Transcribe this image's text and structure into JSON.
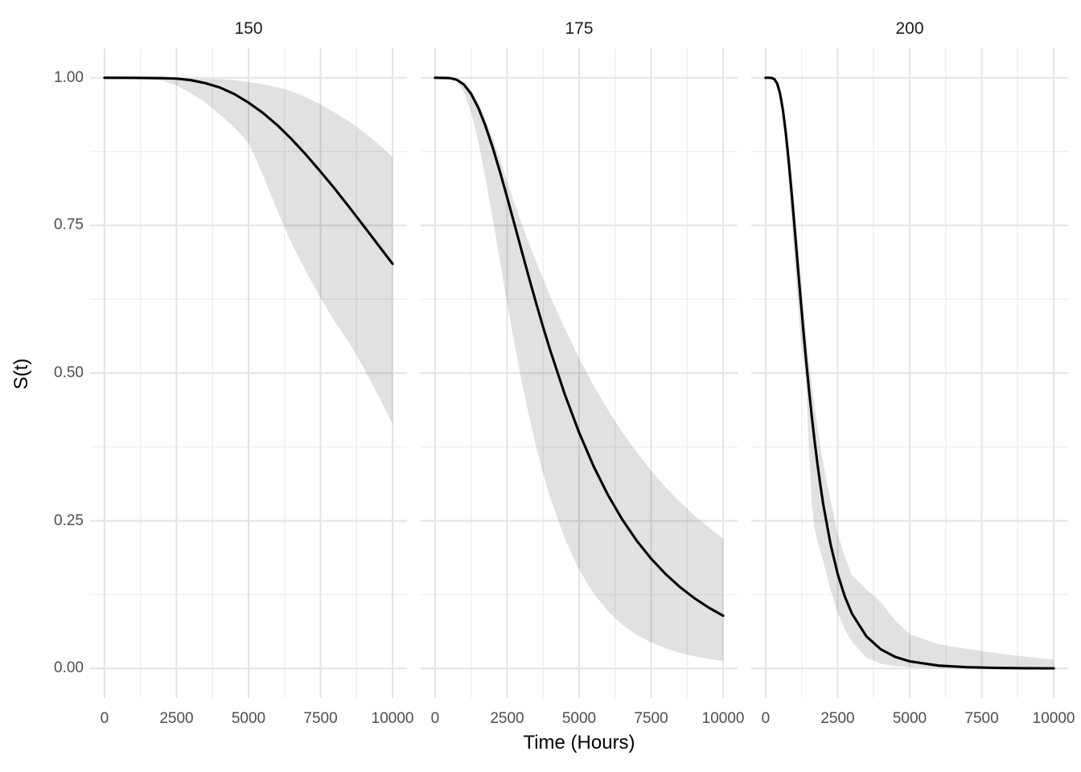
{
  "colors": {
    "background": "#ffffff",
    "curve": "#000000",
    "ribbon": "rgba(0,0,0,0.118)",
    "grid_major": "#e3e3e3",
    "grid_minor": "#efefef",
    "tick_text": "#4d4d4d",
    "facet_text": "#1a1a1a",
    "axis_title_text": "#000000"
  },
  "chart_data": {
    "type": "line",
    "title": "",
    "x_label": "Time (Hours)",
    "y_label": "S(t)",
    "facet_labels": [
      "150",
      "175",
      "200"
    ],
    "x_ticks": [
      0,
      2500,
      5000,
      7500,
      10000
    ],
    "x_tick_labels": [
      "0",
      "2500",
      "5000",
      "7500",
      "10000"
    ],
    "y_ticks": [
      1.0,
      0.75,
      0.5,
      0.25,
      0.0
    ],
    "y_tick_labels": [
      "1.00",
      "0.75",
      "0.50",
      "0.25",
      "0.00"
    ],
    "x_minor": [
      1250,
      3750,
      6250,
      8750
    ],
    "y_minor": [
      0.875,
      0.625,
      0.375,
      0.125
    ],
    "x_range": [
      0,
      10000
    ],
    "y_range": [
      0,
      1
    ],
    "grid": "on",
    "legend": "none",
    "description": "Faceted survival curves S(t) with 95% confidence ribbons at stress levels 150, 175, 200",
    "facets": [
      {
        "label": "150",
        "x": [
          0,
          1000,
          2000,
          2500,
          3000,
          3500,
          4000,
          4500,
          5000,
          5500,
          6000,
          6500,
          7000,
          7500,
          8000,
          8500,
          9000,
          9500,
          10000
        ],
        "s": [
          1,
          0.9999,
          0.9994,
          0.9986,
          0.996,
          0.991,
          0.9836,
          0.9726,
          0.958,
          0.9405,
          0.9198,
          0.8958,
          0.8695,
          0.841,
          0.8117,
          0.7807,
          0.7491,
          0.717,
          0.685
        ],
        "lower": [
          1,
          0.9995,
          0.995,
          0.987,
          0.974,
          0.958,
          0.938,
          0.916,
          0.89,
          0.835,
          0.775,
          0.719,
          0.672,
          0.627,
          0.587,
          0.551,
          0.509,
          0.462,
          0.414
        ],
        "upper": [
          1,
          1,
          1,
          0.9995,
          0.999,
          0.9985,
          0.998,
          0.996,
          0.993,
          0.989,
          0.984,
          0.977,
          0.967,
          0.955,
          0.941,
          0.926,
          0.908,
          0.888,
          0.866
        ]
      },
      {
        "label": "175",
        "x": [
          0,
          500,
          750,
          1000,
          1250,
          1500,
          1750,
          2000,
          2250,
          2500,
          2750,
          3000,
          3250,
          3500,
          3750,
          4000,
          4500,
          5000,
          5500,
          6000,
          6500,
          7000,
          7500,
          8000,
          8500,
          9000,
          9500,
          10000
        ],
        "s": [
          1,
          0.9996,
          0.9968,
          0.9886,
          0.9728,
          0.9493,
          0.9185,
          0.8821,
          0.8413,
          0.7979,
          0.7531,
          0.7081,
          0.6634,
          0.6199,
          0.578,
          0.5382,
          0.4644,
          0.3994,
          0.3426,
          0.2938,
          0.252,
          0.2163,
          0.1859,
          0.16,
          0.1379,
          0.1191,
          0.103,
          0.0893
        ],
        "lower": [
          1,
          0.9994,
          0.9939,
          0.9761,
          0.942,
          0.8921,
          0.8304,
          0.7616,
          0.6899,
          0.6191,
          0.5511,
          0.4878,
          0.4296,
          0.3772,
          0.3301,
          0.2887,
          0.2198,
          0.1671,
          0.1271,
          0.0969,
          0.0741,
          0.0569,
          0.0438,
          0.034,
          0.0264,
          0.0206,
          0.0161,
          0.0127
        ],
        "upper": [
          1,
          0.9998,
          0.998,
          0.9926,
          0.979,
          0.958,
          0.93,
          0.898,
          0.862,
          0.825,
          0.789,
          0.754,
          0.721,
          0.69,
          0.659,
          0.63,
          0.576,
          0.525,
          0.479,
          0.438,
          0.4,
          0.366,
          0.335,
          0.307,
          0.282,
          0.259,
          0.239,
          0.22
        ]
      },
      {
        "label": "200",
        "x": [
          0,
          100,
          200,
          300,
          400,
          500,
          600,
          700,
          800,
          900,
          1000,
          1100,
          1200,
          1300,
          1400,
          1500,
          1600,
          1700,
          1800,
          1900,
          2000,
          2250,
          2500,
          2750,
          3000,
          3500,
          4000,
          4500,
          5000,
          6000,
          7000,
          8000,
          9000,
          10000
        ],
        "s": [
          1,
          1,
          0.9998,
          0.9979,
          0.9903,
          0.9734,
          0.9453,
          0.9067,
          0.8595,
          0.8062,
          0.7493,
          0.6911,
          0.6333,
          0.5774,
          0.5241,
          0.4741,
          0.4276,
          0.3849,
          0.3459,
          0.3104,
          0.2777,
          0.2112,
          0.1602,
          0.1216,
          0.0925,
          0.0542,
          0.0323,
          0.0196,
          0.0121,
          0.0049,
          0.0021,
          0.0009,
          0.0004,
          0.0002
        ],
        "lower": [
          1,
          1,
          0.9996,
          0.996,
          0.985,
          0.965,
          0.928,
          0.878,
          0.82,
          0.757,
          0.693,
          0.63,
          0.568,
          0.525,
          0.488,
          0.377,
          0.281,
          0.236,
          0.216,
          0.198,
          0.181,
          0.133,
          0.095,
          0.066,
          0.045,
          0.018,
          0.008,
          0.004,
          0.002,
          0.001,
          0.0006,
          0.0004,
          0.0002,
          0.0001
        ],
        "upper": [
          1,
          1,
          1,
          0.999,
          0.994,
          0.985,
          0.958,
          0.925,
          0.885,
          0.837,
          0.785,
          0.73,
          0.675,
          0.62,
          0.568,
          0.52,
          0.482,
          0.444,
          0.408,
          0.376,
          0.347,
          0.285,
          0.228,
          0.189,
          0.158,
          0.134,
          0.112,
          0.081,
          0.058,
          0.041,
          0.033,
          0.026,
          0.02,
          0.015
        ]
      }
    ]
  }
}
